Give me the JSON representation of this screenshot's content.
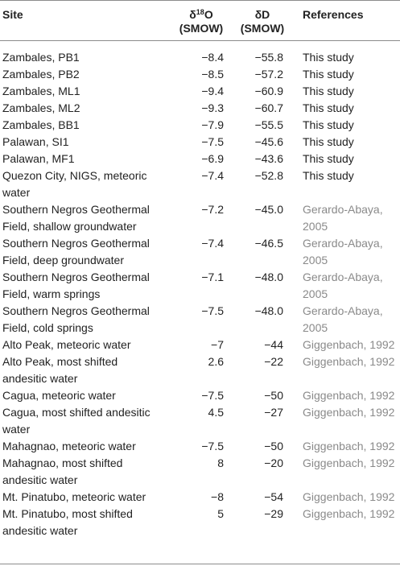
{
  "header": {
    "site": "Site",
    "o_prefix": "δ",
    "o_sup": "18",
    "o_suffix": "O",
    "o_unit": "(SMOW)",
    "d_label": "δD",
    "d_unit": "(SMOW)",
    "references": "References"
  },
  "rows": [
    {
      "site": [
        "Zambales, PB1"
      ],
      "o18": "−8.4",
      "dD": "−55.8",
      "ref": [
        "This study"
      ],
      "ref_gray": false
    },
    {
      "site": [
        "Zambales, PB2"
      ],
      "o18": "−8.5",
      "dD": "−57.2",
      "ref": [
        "This study"
      ],
      "ref_gray": false
    },
    {
      "site": [
        "Zambales, ML1"
      ],
      "o18": "−9.4",
      "dD": "−60.9",
      "ref": [
        "This study"
      ],
      "ref_gray": false
    },
    {
      "site": [
        "Zambales, ML2"
      ],
      "o18": "−9.3",
      "dD": "−60.7",
      "ref": [
        "This study"
      ],
      "ref_gray": false
    },
    {
      "site": [
        "Zambales, BB1"
      ],
      "o18": "−7.9",
      "dD": "−55.5",
      "ref": [
        "This study"
      ],
      "ref_gray": false
    },
    {
      "site": [
        "Palawan, SI1"
      ],
      "o18": "−7.5",
      "dD": "−45.6",
      "ref": [
        "This study"
      ],
      "ref_gray": false
    },
    {
      "site": [
        "Palawan, MF1"
      ],
      "o18": "−6.9",
      "dD": "−43.6",
      "ref": [
        "This study"
      ],
      "ref_gray": false
    },
    {
      "site": [
        "Quezon City, NIGS, meteoric",
        "water"
      ],
      "o18": "−7.4",
      "dD": "−52.8",
      "ref": [
        "This study"
      ],
      "ref_gray": false
    },
    {
      "site": [
        "Southern Negros Geothermal",
        "Field, shallow groundwater"
      ],
      "o18": "−7.2",
      "dD": "−45.0",
      "ref": [
        "Gerardo-Abaya,",
        "2005"
      ],
      "ref_gray": true
    },
    {
      "site": [
        "Southern Negros Geothermal",
        "Field, deep groundwater"
      ],
      "o18": "−7.4",
      "dD": "−46.5",
      "ref": [
        "Gerardo-Abaya,",
        "2005"
      ],
      "ref_gray": true
    },
    {
      "site": [
        "Southern Negros Geothermal",
        "Field, warm springs"
      ],
      "o18": "−7.1",
      "dD": "−48.0",
      "ref": [
        "Gerardo-Abaya,",
        "2005"
      ],
      "ref_gray": true
    },
    {
      "site": [
        "Southern Negros Geothermal",
        "Field, cold springs"
      ],
      "o18": "−7.5",
      "dD": "−48.0",
      "ref": [
        "Gerardo-Abaya,",
        "2005"
      ],
      "ref_gray": true
    },
    {
      "site": [
        "Alto Peak, meteoric water"
      ],
      "o18": "−7",
      "dD": "−44",
      "ref": [
        "Giggenbach, 1992"
      ],
      "ref_gray": true
    },
    {
      "site": [
        "Alto Peak, most shifted",
        "andesitic water"
      ],
      "o18": "2.6",
      "dD": "−22",
      "ref": [
        "Giggenbach, 1992"
      ],
      "ref_gray": true
    },
    {
      "site": [
        "Cagua, meteoric water"
      ],
      "o18": "−7.5",
      "dD": "−50",
      "ref": [
        "Giggenbach, 1992"
      ],
      "ref_gray": true
    },
    {
      "site": [
        "Cagua, most shifted andesitic",
        "water"
      ],
      "o18": "4.5",
      "dD": "−27",
      "ref": [
        "Giggenbach, 1992"
      ],
      "ref_gray": true
    },
    {
      "site": [
        "Mahagnao, meteoric water"
      ],
      "o18": "−7.5",
      "dD": "−50",
      "ref": [
        "Giggenbach, 1992"
      ],
      "ref_gray": true
    },
    {
      "site": [
        "Mahagnao, most shifted",
        "andesitic water"
      ],
      "o18": "8",
      "dD": "−20",
      "ref": [
        "Giggenbach, 1992"
      ],
      "ref_gray": true
    },
    {
      "site": [
        "Mt. Pinatubo, meteoric water"
      ],
      "o18": "−8",
      "dD": "−54",
      "ref": [
        "Giggenbach, 1992"
      ],
      "ref_gray": true
    },
    {
      "site": [
        "Mt. Pinatubo, most shifted",
        "andesitic water"
      ],
      "o18": "5",
      "dD": "−29",
      "ref": [
        "Giggenbach, 1992"
      ],
      "ref_gray": true
    }
  ]
}
